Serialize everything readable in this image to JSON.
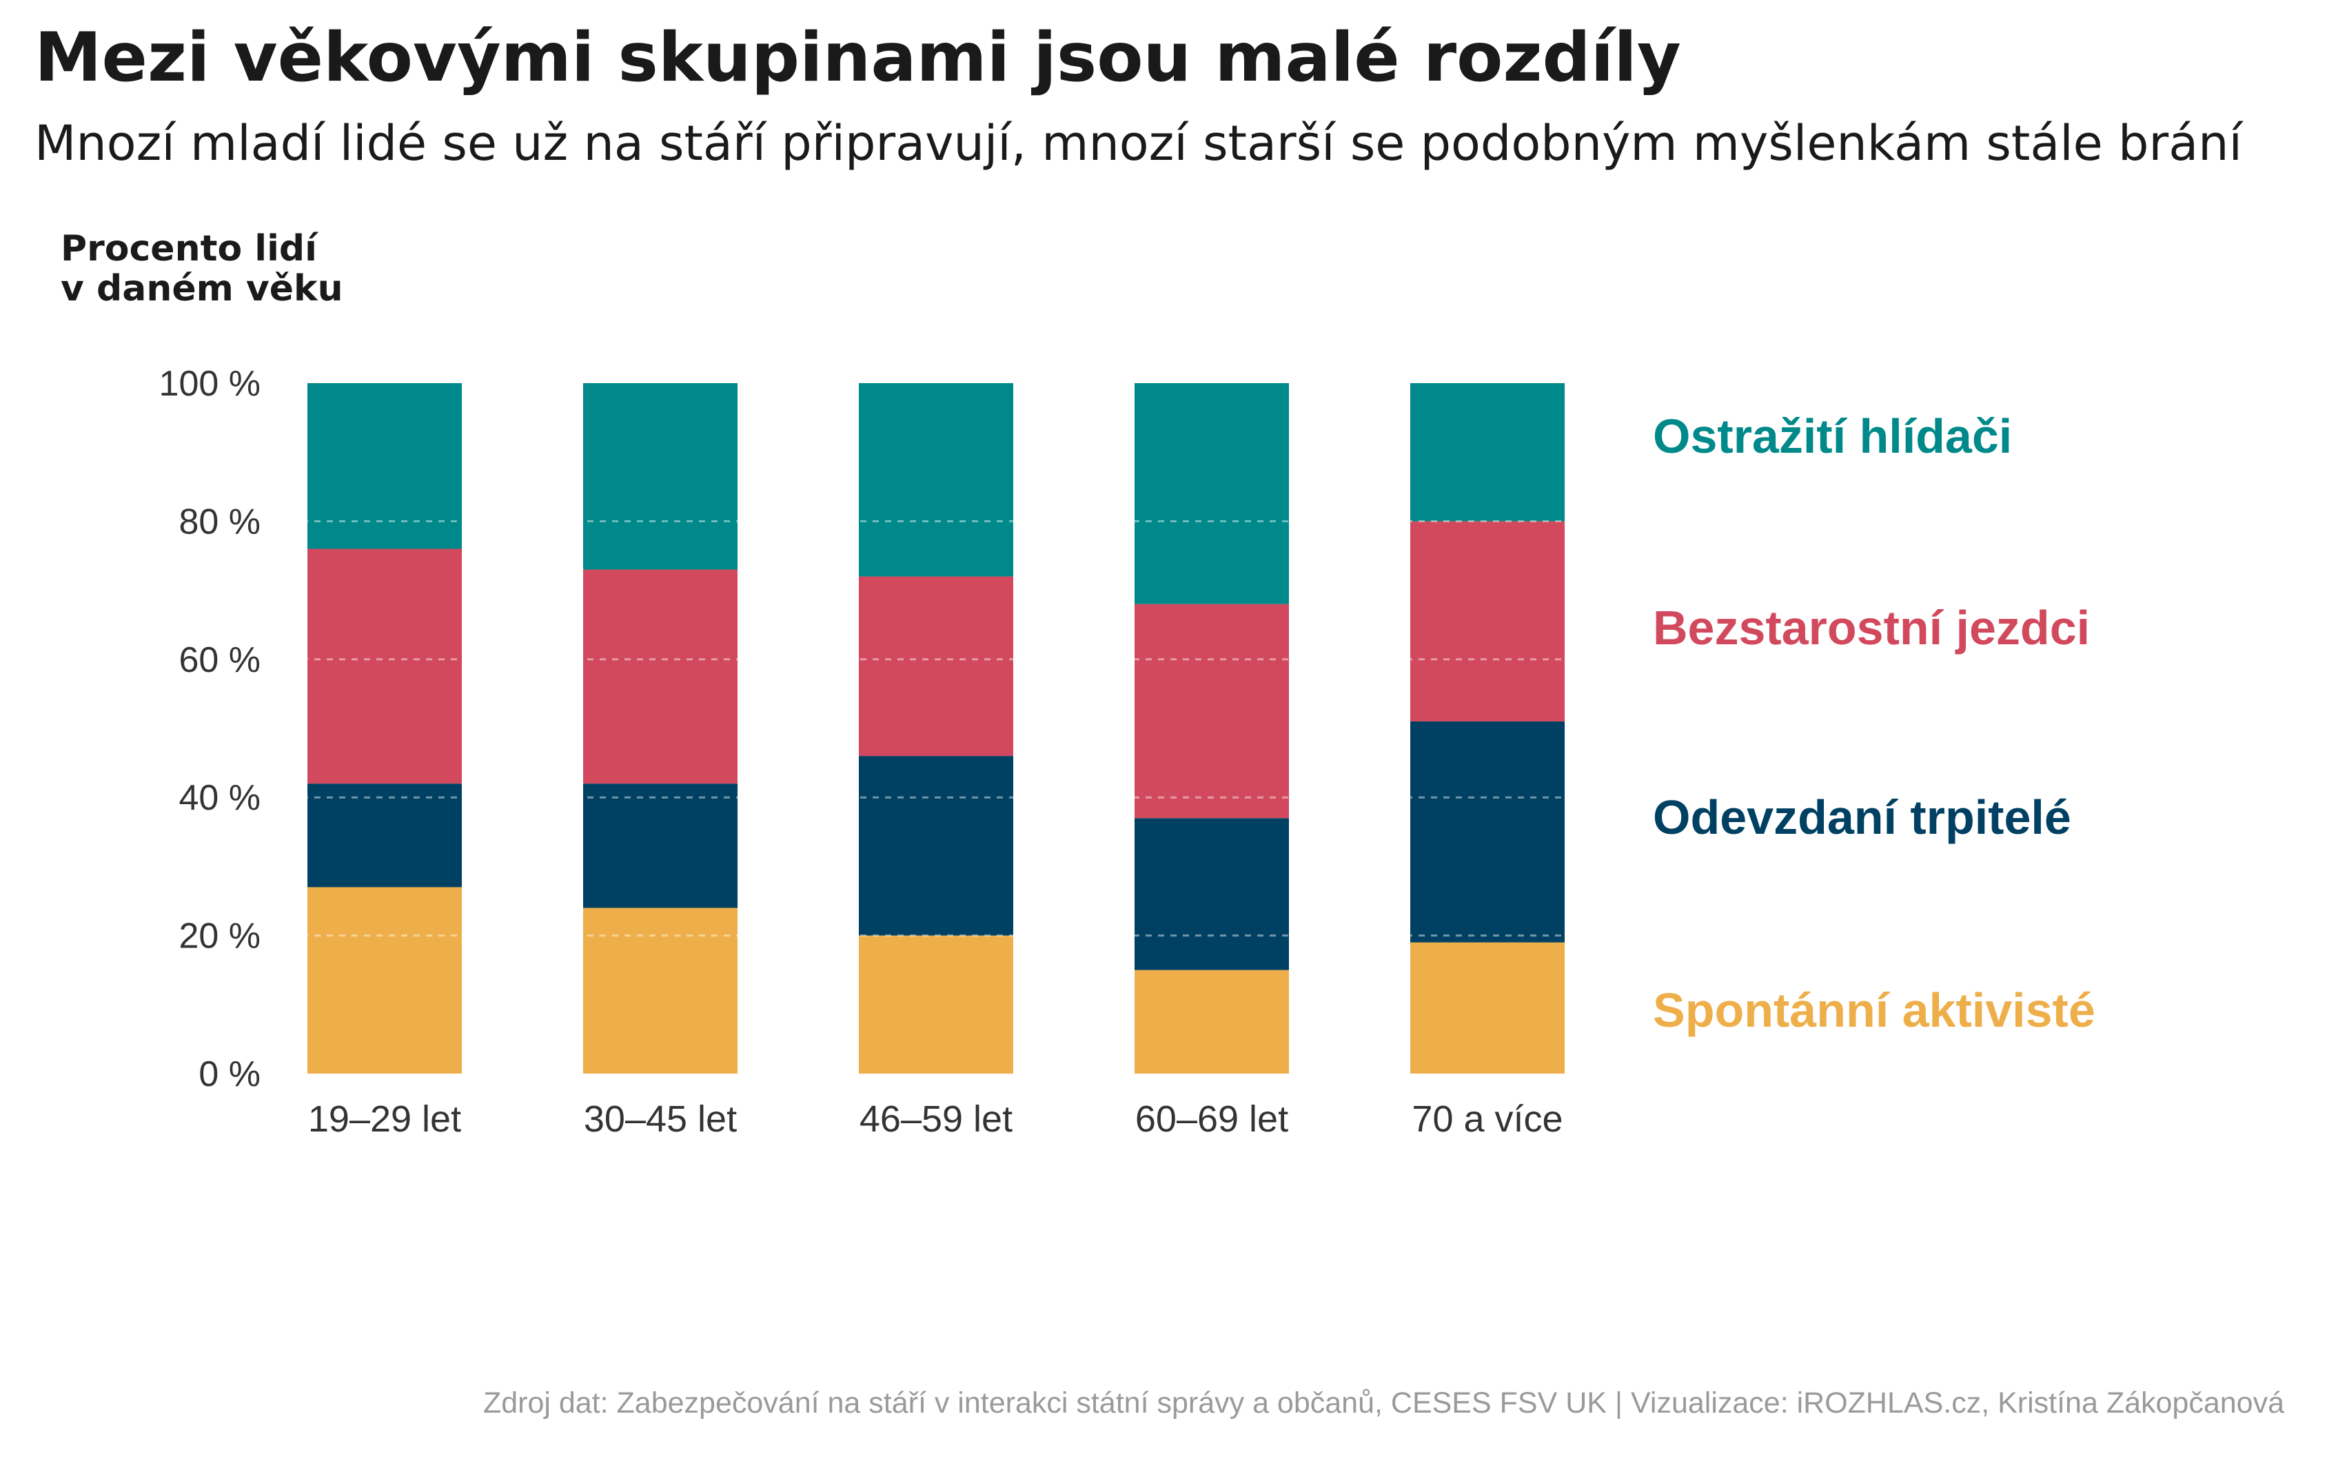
{
  "title": "Mezi věkovými skupinami jsou malé rozdíly",
  "subtitle": "Mnozí mladí lidé se už na stáří připravují, mnozí starší se podobným myšlenkám stále brání",
  "source": "Zdroj dat: Zabezpečování na stáří v interakci státní správy a občanů, CESES FSV UK | Vizualizace: iROZHLAS.cz, Kristína Zákopčanová",
  "chart_data": {
    "type": "bar",
    "stacked": true,
    "ylabel_lines": [
      "Procento lidí",
      "v daném věku"
    ],
    "categories": [
      "19–29 let",
      "30–45 let",
      "46–59 let",
      "60–69 let",
      "70 a více"
    ],
    "ylim": [
      0,
      100
    ],
    "yticks": [
      0,
      20,
      40,
      60,
      80,
      100
    ],
    "ytick_labels": [
      "0 %",
      "20 %",
      "40 %",
      "60 %",
      "80 %",
      "100 %"
    ],
    "grid": true,
    "legend_position": "right",
    "series": [
      {
        "name": "Spontánní aktivisté",
        "color": "#EEAF4A",
        "values": [
          27,
          24,
          20,
          15,
          19
        ]
      },
      {
        "name": "Odevzdaní trpitelé",
        "color": "#004062",
        "values": [
          15,
          18,
          26,
          22,
          32
        ]
      },
      {
        "name": "Bezstarostní jezdci",
        "color": "#D2495E",
        "values": [
          34,
          31,
          26,
          31,
          29
        ]
      },
      {
        "name": "Ostražití hlídači",
        "color": "#00898A",
        "values": [
          24,
          27,
          28,
          32,
          20
        ]
      }
    ]
  }
}
